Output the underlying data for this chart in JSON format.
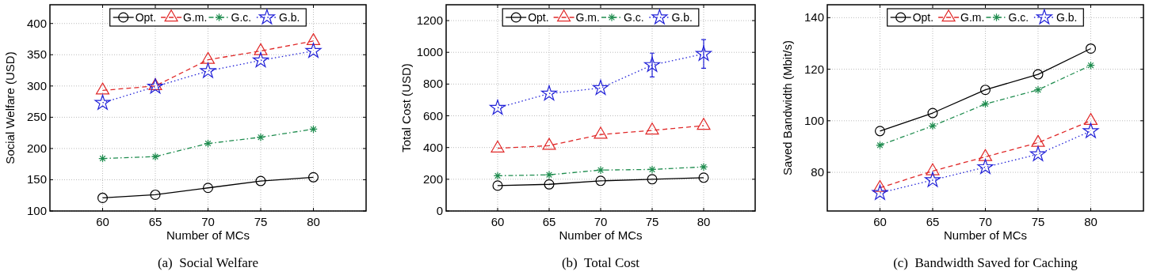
{
  "chart_data": [
    {
      "type": "line",
      "title": "(a)  Social Welfare",
      "xlabel": "Number of MCs",
      "ylabel": "Social Welfare (USD)",
      "x": [
        60,
        65,
        70,
        75,
        80
      ],
      "xlim": [
        55,
        85
      ],
      "xticks": [
        60,
        65,
        70,
        75,
        80
      ],
      "ylim": [
        100,
        430
      ],
      "yticks": [
        100,
        150,
        200,
        250,
        300,
        350,
        400
      ],
      "grid": true,
      "legend": "top",
      "series": [
        {
          "name": "Opt.",
          "color": "#000000",
          "marker": "circle",
          "line_style": "solid",
          "values": [
            121,
            126,
            137,
            148,
            154
          ]
        },
        {
          "name": "G.m.",
          "color": "#e02828",
          "marker": "triangle",
          "line_style": "dashed",
          "values": [
            293,
            300,
            342,
            356,
            372
          ]
        },
        {
          "name": "G.c.",
          "color": "#1e8c4e",
          "marker": "cross",
          "line_style": "dashdot",
          "values": [
            184,
            187,
            208,
            218,
            231
          ]
        },
        {
          "name": "G.b.",
          "color": "#2020d8",
          "marker": "star",
          "line_style": "dotted",
          "values": [
            273,
            299,
            324,
            341,
            356
          ]
        }
      ]
    },
    {
      "type": "line",
      "title": "(b)  Total Cost",
      "xlabel": "Number of MCs",
      "ylabel": "Total Cost (USD)",
      "x": [
        60,
        65,
        70,
        75,
        80
      ],
      "xlim": [
        55,
        85
      ],
      "xticks": [
        60,
        65,
        70,
        75,
        80
      ],
      "ylim": [
        0,
        1300
      ],
      "yticks": [
        0,
        200,
        400,
        600,
        800,
        1000,
        1200
      ],
      "grid": true,
      "legend": "top",
      "series": [
        {
          "name": "Opt.",
          "color": "#000000",
          "marker": "circle",
          "line_style": "solid",
          "values": [
            160,
            168,
            190,
            200,
            210
          ]
        },
        {
          "name": "G.m.",
          "color": "#e02828",
          "marker": "triangle",
          "line_style": "dashed",
          "values": [
            395,
            412,
            482,
            508,
            538
          ]
        },
        {
          "name": "G.c.",
          "color": "#1e8c4e",
          "marker": "cross",
          "line_style": "dashdot",
          "values": [
            222,
            228,
            258,
            262,
            278
          ]
        },
        {
          "name": "G.b.",
          "color": "#2020d8",
          "marker": "star",
          "line_style": "dotted",
          "values": [
            650,
            740,
            775,
            920,
            990
          ],
          "errors": [
            null,
            null,
            null,
            75,
            90
          ]
        }
      ]
    },
    {
      "type": "line",
      "title": "(c)  Bandwidth Saved for Caching",
      "xlabel": "Number of MCs",
      "ylabel": "Saved Bandwidth (Mbit/s)",
      "x": [
        60,
        65,
        70,
        75,
        80
      ],
      "xlim": [
        55,
        85
      ],
      "xticks": [
        60,
        65,
        70,
        75,
        80
      ],
      "ylim": [
        65,
        145
      ],
      "yticks": [
        80,
        100,
        120,
        140
      ],
      "grid": true,
      "legend": "top",
      "series": [
        {
          "name": "Opt.",
          "color": "#000000",
          "marker": "circle",
          "line_style": "solid",
          "values": [
            96,
            103,
            112,
            118,
            128
          ]
        },
        {
          "name": "G.m.",
          "color": "#e02828",
          "marker": "triangle",
          "line_style": "dashed",
          "values": [
            74,
            80.5,
            86,
            91.5,
            100
          ]
        },
        {
          "name": "G.c.",
          "color": "#1e8c4e",
          "marker": "cross",
          "line_style": "dashdot",
          "values": [
            90.5,
            98,
            106.5,
            112,
            121.5
          ]
        },
        {
          "name": "G.b.",
          "color": "#2020d8",
          "marker": "star",
          "line_style": "dotted",
          "values": [
            72,
            77,
            82,
            87,
            96
          ]
        }
      ]
    }
  ]
}
